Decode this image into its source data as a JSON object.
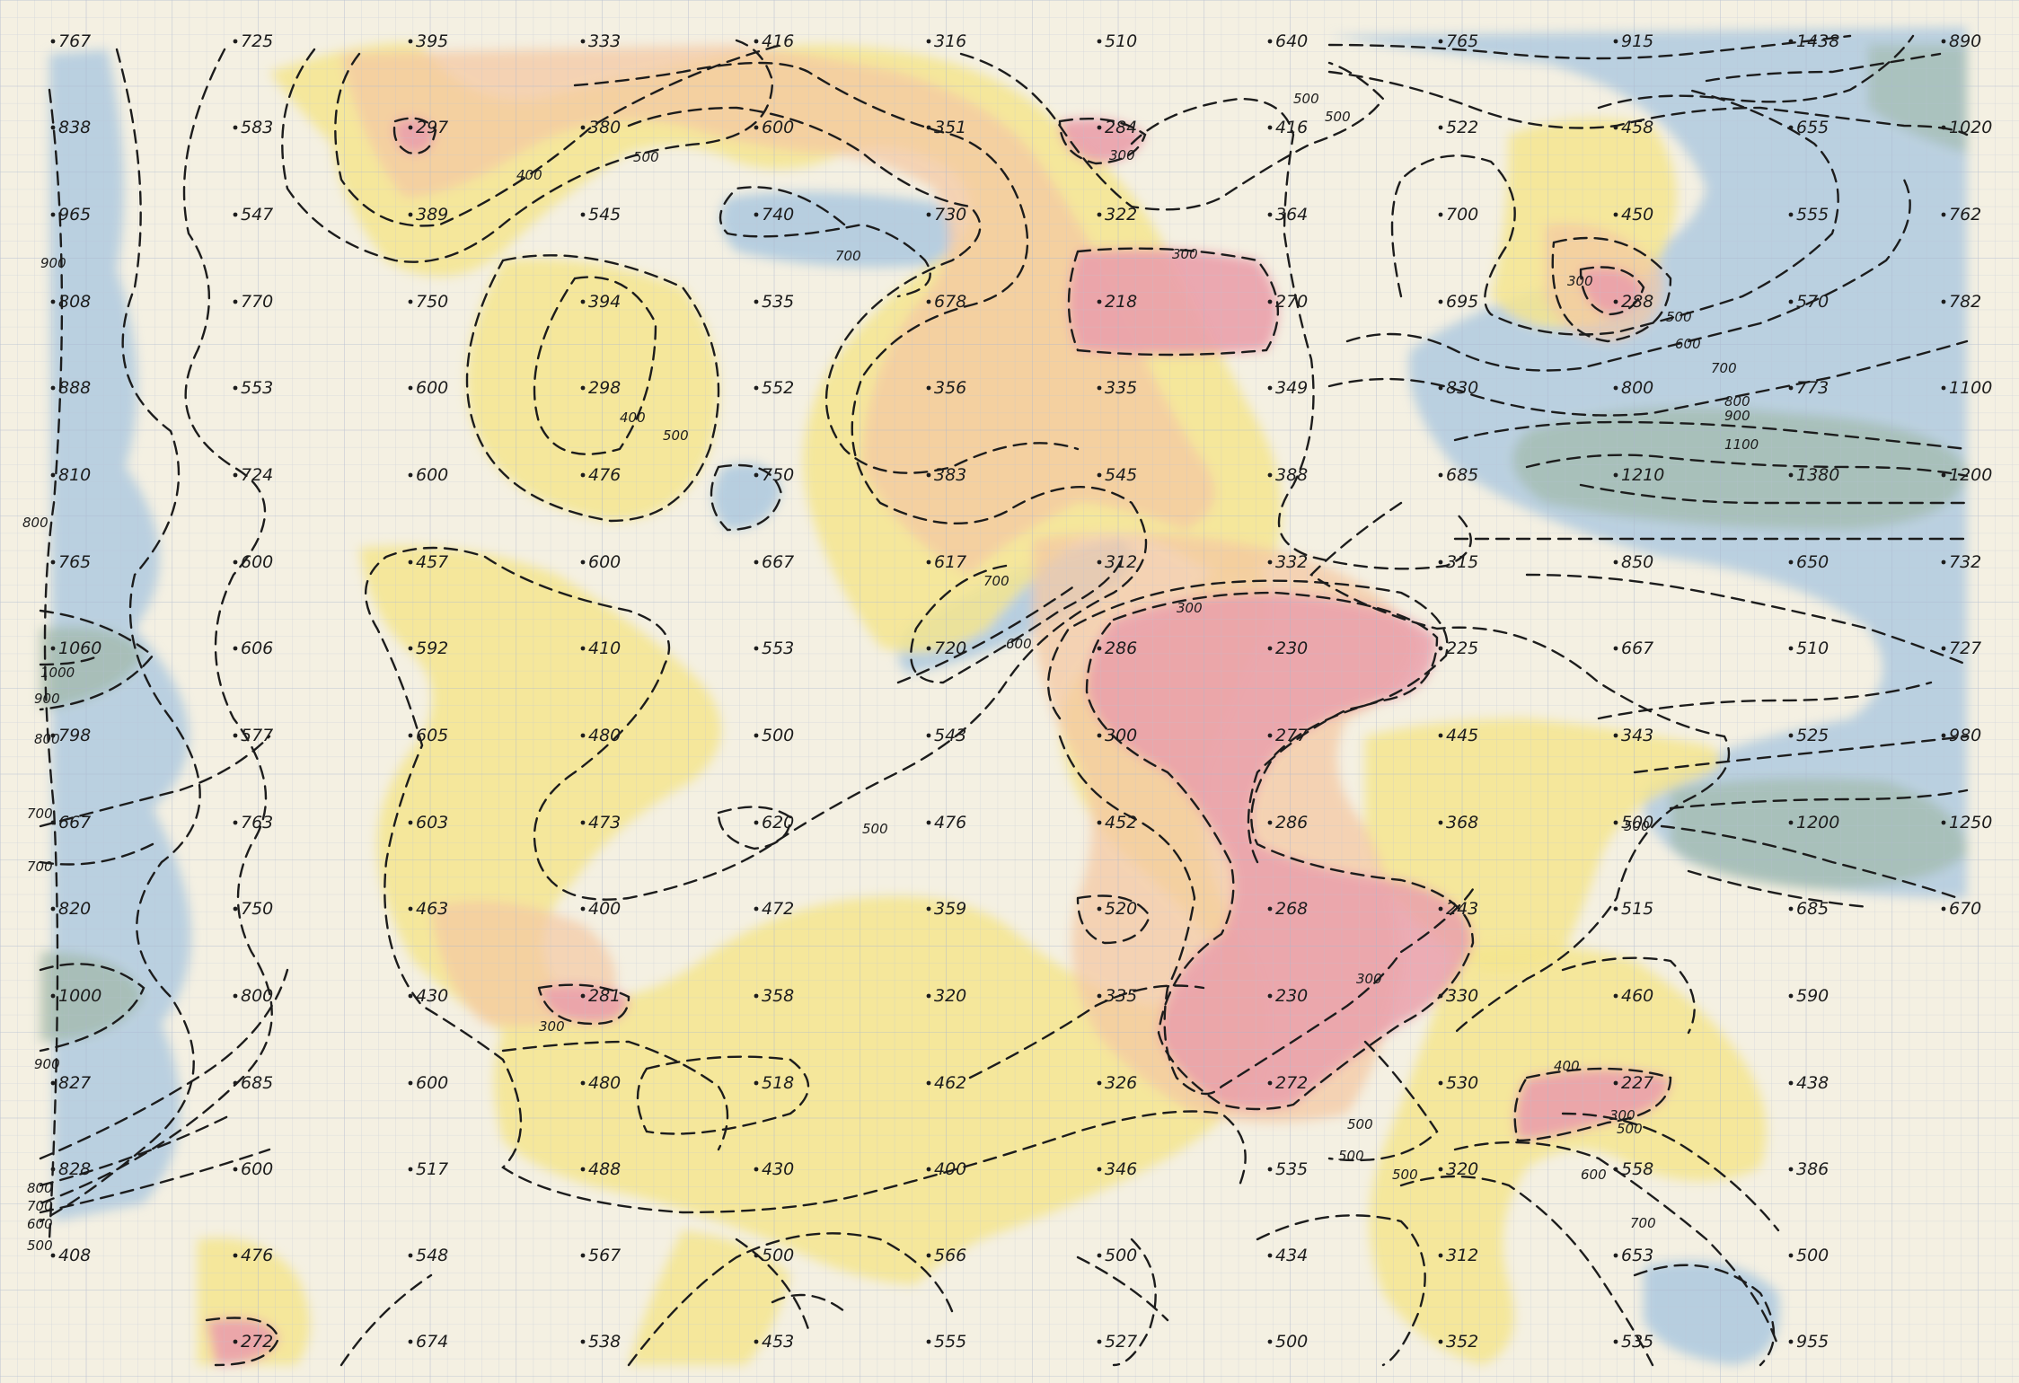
{
  "map": {
    "colors": {
      "paper": "#f4f0e2",
      "grid": "#b9c3d6",
      "blue": "#a7c6df",
      "green": "#9fb7a6",
      "yellow": "#f5e58e",
      "peach": "#f4c8a3",
      "pink": "#eaa0ab",
      "ink": "#1c1c1c"
    },
    "station_values": [
      [
        "767",
        "725",
        "395",
        "333",
        "416",
        "316",
        "510",
        "640",
        "765",
        "915",
        "1438",
        "890"
      ],
      [
        "838",
        "583",
        "297",
        "380",
        "600",
        "351",
        "284",
        "416",
        "522",
        "458",
        "655",
        "1020"
      ],
      [
        "965",
        "547",
        "389",
        "545",
        "740",
        "730",
        "322",
        "364",
        "700",
        "450",
        "555",
        "762"
      ],
      [
        "808",
        "770",
        "750",
        "394",
        "535",
        "678",
        "218",
        "270",
        "695",
        "288",
        "570",
        "782"
      ],
      [
        "888",
        "553",
        "600",
        "298",
        "552",
        "356",
        "335",
        "349",
        "830",
        "800",
        "773",
        "1100"
      ],
      [
        "810",
        "724",
        "600",
        "476",
        "750",
        "383",
        "545",
        "388",
        "685",
        "1210",
        "1380",
        "1200"
      ],
      [
        "765",
        "600",
        "457",
        "600",
        "667",
        "617",
        "312",
        "332",
        "315",
        "850",
        "650",
        "732"
      ],
      [
        "1060",
        "606",
        "592",
        "410",
        "553",
        "720",
        "286",
        "230",
        "225",
        "667",
        "510",
        "727"
      ],
      [
        "798",
        "577",
        "605",
        "480",
        "500",
        "543",
        "300",
        "277",
        "445",
        "343",
        "525",
        "980"
      ],
      [
        "667",
        "763",
        "603",
        "473",
        "620",
        "476",
        "452",
        "286",
        "368",
        "500",
        "1200",
        "1250"
      ],
      [
        "820",
        "750",
        "463",
        "400",
        "472",
        "359",
        "520",
        "268",
        "243",
        "515",
        "685",
        "670"
      ],
      [
        "1000",
        "800",
        "430",
        "281",
        "358",
        "320",
        "335",
        "230",
        "330",
        "460",
        "590",
        ""
      ],
      [
        "827",
        "685",
        "600",
        "480",
        "518",
        "462",
        "326",
        "272",
        "530",
        "227",
        "438",
        ""
      ],
      [
        "828",
        "600",
        "517",
        "488",
        "430",
        "400",
        "346",
        "535",
        "320",
        "558",
        "386",
        ""
      ],
      [
        "408",
        "476",
        "548",
        "567",
        "500",
        "566",
        "500",
        "434",
        "312",
        "653",
        "500",
        ""
      ],
      [
        "",
        "272",
        "674",
        "538",
        "453",
        "555",
        "527",
        "500",
        "352",
        "535",
        "955",
        ""
      ]
    ],
    "contour_labels": [
      "400",
      "500",
      "500",
      "700",
      "400",
      "500",
      "300",
      "300",
      "500",
      "300",
      "500",
      "600",
      "700",
      "800",
      "900",
      "1100",
      "300",
      "700",
      "600",
      "300",
      "500",
      "500",
      "300",
      "400",
      "300",
      "500",
      "500",
      "500",
      "600",
      "700",
      "900",
      "800",
      "1000",
      "900",
      "800",
      "700",
      "700",
      "900",
      "800",
      "700",
      "600",
      "500",
      "500"
    ]
  }
}
